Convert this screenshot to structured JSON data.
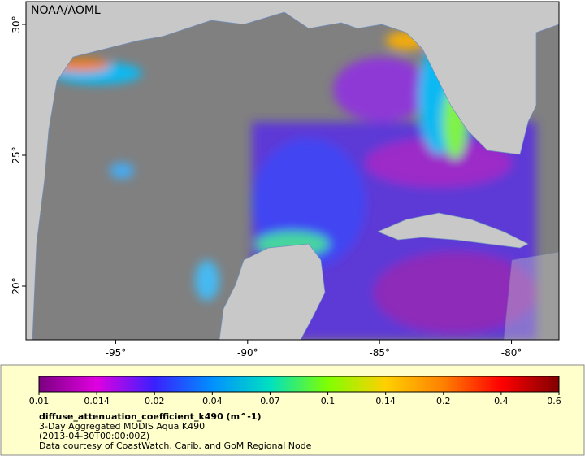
{
  "map": {
    "credit": "NOAA/AOML",
    "lon_range": [
      -98.4,
      -78.2
    ],
    "lat_range": [
      17.95,
      30.87
    ],
    "lon_ticks": [
      {
        "value": -95,
        "label": "-95°"
      },
      {
        "value": -90,
        "label": "-90°"
      },
      {
        "value": -85,
        "label": "-85°"
      },
      {
        "value": -80,
        "label": "-80°"
      }
    ],
    "lat_ticks": [
      {
        "value": 30,
        "label": "30°"
      },
      {
        "value": 25,
        "label": "25°"
      },
      {
        "value": 20,
        "label": "20°"
      }
    ]
  },
  "legend": {
    "colorbar_ticks": [
      0.01,
      0.014,
      0.02,
      0.04,
      0.07,
      0.1,
      0.14,
      0.2,
      0.4,
      0.6
    ],
    "colors": [
      "#7a0080",
      "#e000e0",
      "#3a20ff",
      "#0090ff",
      "#00e0c0",
      "#80ff00",
      "#ffd000",
      "#ff8000",
      "#ff0000",
      "#800000"
    ],
    "variable": "diffuse_attenuation_coefficient_k490 (m^-1)",
    "product": "3-Day Aggregated MODIS Aqua K490",
    "time": "(2013-04-30T00:00:00Z)",
    "source": "Data courtesy of CoastWatch, Carib. and GoM Regional Node"
  }
}
